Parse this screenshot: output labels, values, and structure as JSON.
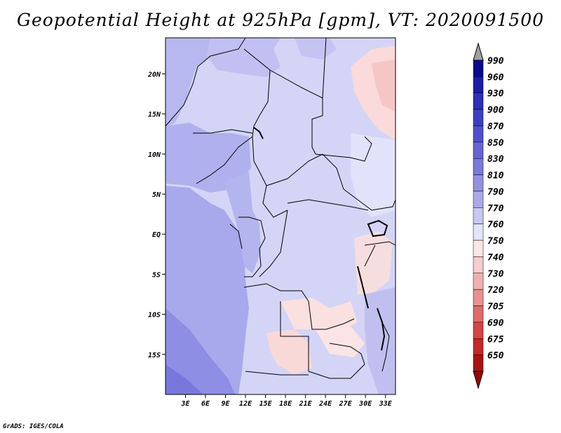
{
  "header": {
    "title": "Geopotential Height at 925hPa [gpm], VT: 2020091500"
  },
  "footer": {
    "credit": "GrADS: IGES/COLA"
  },
  "map": {
    "variable": "Geopotential Height",
    "level": "925hPa",
    "units": "gpm",
    "valid_time": "2020091500",
    "region": "Central Africa",
    "lat_ticks": [
      "20N",
      "15N",
      "10N",
      "5N",
      "EQ",
      "5S",
      "10S",
      "15S"
    ],
    "lat_values": [
      20,
      15,
      10,
      5,
      0,
      -5,
      -10,
      -15
    ],
    "lon_ticks": [
      "3E",
      "6E",
      "9E",
      "12E",
      "15E",
      "18E",
      "21E",
      "24E",
      "27E",
      "30E",
      "33E"
    ],
    "lon_values": [
      3,
      6,
      9,
      12,
      15,
      18,
      21,
      24,
      27,
      30,
      33
    ],
    "lat_range": [
      -20,
      24.5
    ],
    "lon_range": [
      0,
      34.5
    ]
  },
  "colorbar": {
    "labels": [
      "990",
      "960",
      "930",
      "900",
      "870",
      "850",
      "830",
      "810",
      "790",
      "770",
      "760",
      "750",
      "740",
      "730",
      "720",
      "705",
      "690",
      "675",
      "650"
    ],
    "colors": [
      "#0a0a8c",
      "#1d1da6",
      "#2e2eb8",
      "#3e3ec4",
      "#5050cc",
      "#6464d4",
      "#7a7ad8",
      "#9292e0",
      "#aaaaea",
      "#c8c8f2",
      "#e4e4fa",
      "#fbe6e6",
      "#f6cccc",
      "#f0b0b0",
      "#ea9090",
      "#e06a6a",
      "#d44545",
      "#c42828",
      "#a81212"
    ],
    "top_arrow_color": "#a0a0a0",
    "bottom_arrow_color": "#a00000"
  },
  "colors": {
    "high_purple": "#8a8ae8",
    "mid_lavender": "#b8b8f0",
    "light_lavender": "#d8d8f8",
    "pink": "#fadada",
    "border": "#000000"
  }
}
